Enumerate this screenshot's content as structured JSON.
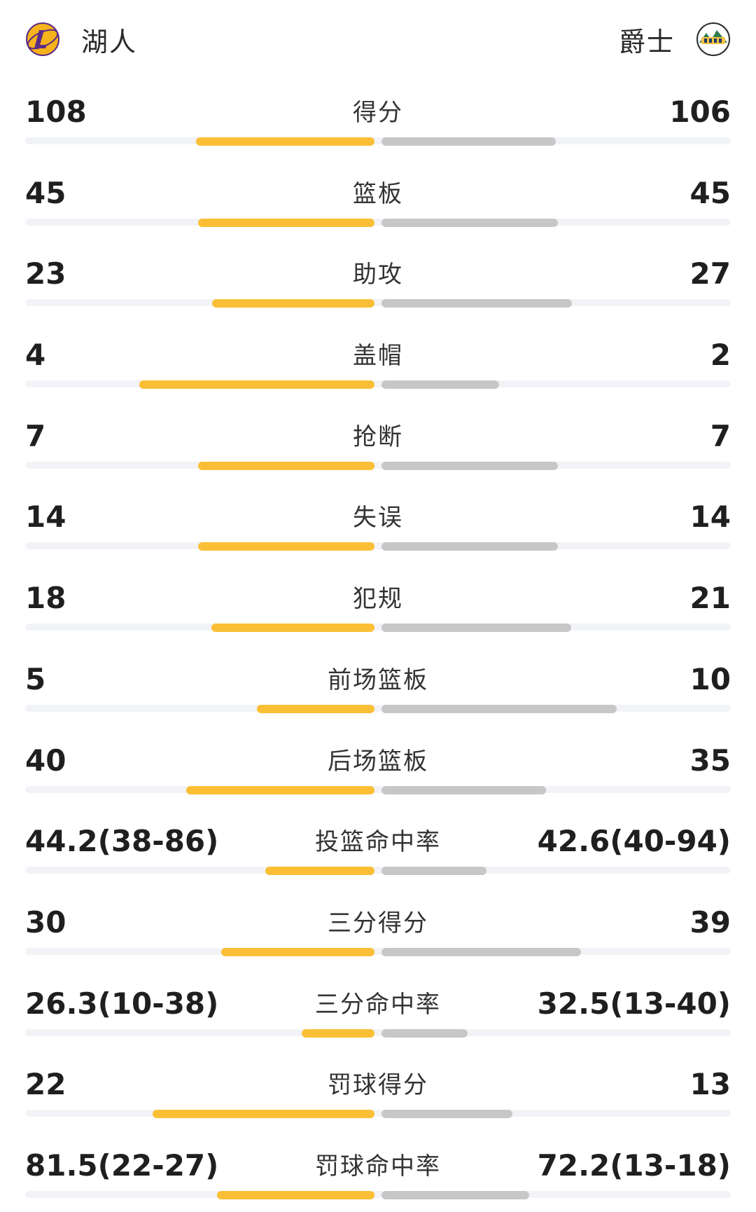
{
  "header": {
    "home": {
      "name": "湖人",
      "logo_icon": "lakers-logo"
    },
    "away": {
      "name": "爵士",
      "logo_icon": "jazz-logo"
    }
  },
  "colors": {
    "home_bar": "#fbbf36",
    "away_bar": "#c7c7c7",
    "track": "#f1f3f6"
  },
  "stats": [
    {
      "label": "得分",
      "home": "108",
      "away": "106",
      "home_share": 0.505,
      "away_share": 0.495
    },
    {
      "label": "篮板",
      "home": "45",
      "away": "45",
      "home_share": 0.5,
      "away_share": 0.5
    },
    {
      "label": "助攻",
      "home": "23",
      "away": "27",
      "home_share": 0.46,
      "away_share": 0.54
    },
    {
      "label": "盖帽",
      "home": "4",
      "away": "2",
      "home_share": 0.667,
      "away_share": 0.333
    },
    {
      "label": "抢断",
      "home": "7",
      "away": "7",
      "home_share": 0.5,
      "away_share": 0.5
    },
    {
      "label": "失误",
      "home": "14",
      "away": "14",
      "home_share": 0.5,
      "away_share": 0.5
    },
    {
      "label": "犯规",
      "home": "18",
      "away": "21",
      "home_share": 0.462,
      "away_share": 0.538
    },
    {
      "label": "前场篮板",
      "home": "5",
      "away": "10",
      "home_share": 0.333,
      "away_share": 0.667
    },
    {
      "label": "后场篮板",
      "home": "40",
      "away": "35",
      "home_share": 0.533,
      "away_share": 0.467
    },
    {
      "label": "投篮命中率",
      "home": "44.2(38-86)",
      "away": "42.6(40-94)",
      "home_share": 0.309,
      "away_share": 0.298
    },
    {
      "label": "三分得分",
      "home": "30",
      "away": "39",
      "home_share": 0.435,
      "away_share": 0.565
    },
    {
      "label": "三分命中率",
      "home": "26.3(10-38)",
      "away": "32.5(13-40)",
      "home_share": 0.206,
      "away_share": 0.244
    },
    {
      "label": "罚球得分",
      "home": "22",
      "away": "13",
      "home_share": 0.629,
      "away_share": 0.371
    },
    {
      "label": "罚球命中率",
      "home": "81.5(22-27)",
      "away": "72.2(13-18)",
      "home_share": 0.447,
      "away_share": 0.419
    }
  ]
}
